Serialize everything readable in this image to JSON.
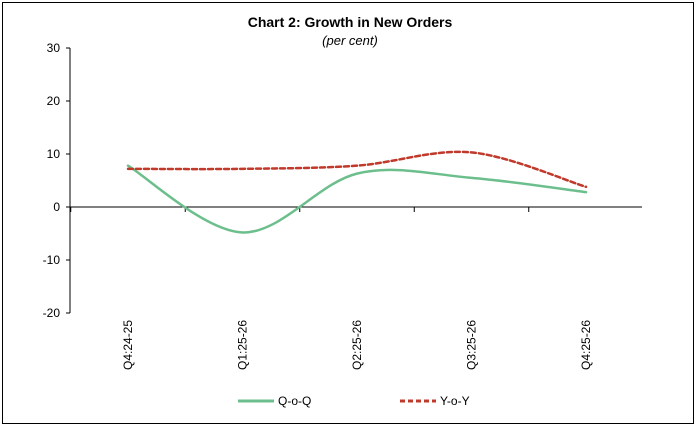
{
  "chart_data": {
    "type": "line",
    "title": "Chart 2: Growth in New Orders",
    "subtitle": "(per cent)",
    "categories": [
      "Q4:24-25",
      "Q1:25-26",
      "Q2:25-26",
      "Q3:25-26",
      "Q4:25-26"
    ],
    "ylim": [
      -20,
      30
    ],
    "yticks": [
      "30",
      "20",
      "10",
      "0",
      "-10",
      "-20"
    ],
    "series": [
      {
        "name": "Q-o-Q",
        "values": [
          7.8,
          -4.8,
          6.3,
          5.5,
          2.8
        ],
        "color": "#6cbf8c",
        "style": "solid"
      },
      {
        "name": "Y-o-Y",
        "values": [
          7.2,
          7.2,
          7.8,
          10.3,
          3.8
        ],
        "color": "#c0392b",
        "style": "dashed"
      }
    ],
    "legend_position": "bottom-center",
    "grid": false
  }
}
